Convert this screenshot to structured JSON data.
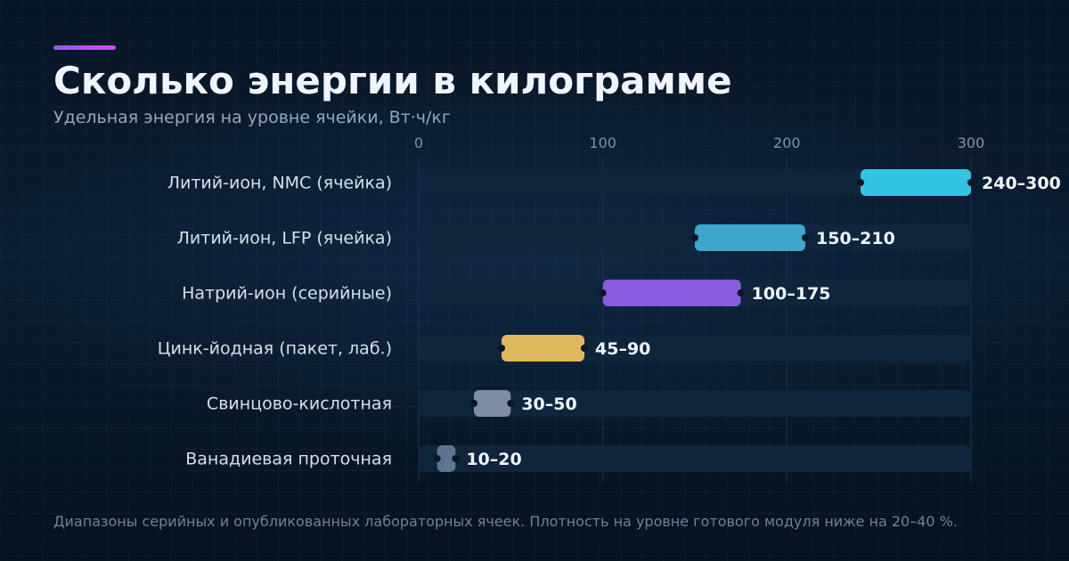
{
  "header": {
    "title": "Сколько энергии в килограмме",
    "subtitle": "Удельная энергия на уровне ячейки, Вт·ч/кг"
  },
  "footer": {
    "note": "Диапазоны серийных и опубликованных лабораторных ячеек. Плотность на уровне готового модуля ниже на 20–40 %."
  },
  "colors": {
    "accent_start": "#8b5cf6",
    "accent_end": "#d946ef",
    "track": "#0f253c",
    "gridline": "#1c3650"
  },
  "chart_data": {
    "type": "bar",
    "orientation": "horizontal-range",
    "title": "Сколько энергии в килограмме",
    "subtitle": "Удельная энергия на уровне ячейки, Вт·ч/кг",
    "xlim": [
      0,
      300
    ],
    "xticks": [
      0,
      100,
      200,
      300
    ],
    "grid": true,
    "categories": [
      "Литий-ион, NMC (ячейка)",
      "Литий-ион, LFP (ячейка)",
      "Натрий-ион (серийные)",
      "Цинк-йодная (пакет, лаб.)",
      "Свинцово-кислотная",
      "Ванадиевая проточная"
    ],
    "ranges": [
      [
        240,
        300
      ],
      [
        150,
        210
      ],
      [
        100,
        175
      ],
      [
        45,
        90
      ],
      [
        30,
        50
      ],
      [
        10,
        20
      ]
    ],
    "value_labels": [
      "240–300",
      "150–210",
      "100–175",
      "45–90",
      "30–50",
      "10–20"
    ],
    "bar_colors": [
      "#33c3e3",
      "#3ea6cc",
      "#8a5ce0",
      "#e0b85e",
      "#7f8ea3",
      "#5d7590"
    ]
  }
}
